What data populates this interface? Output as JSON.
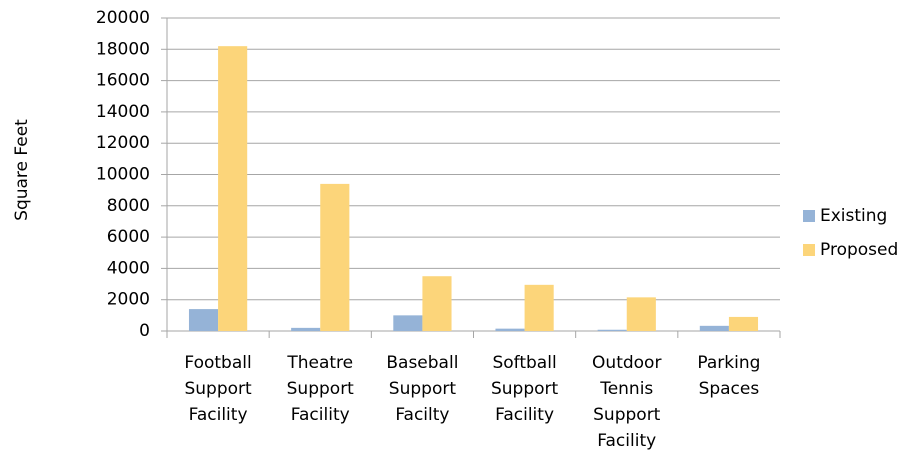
{
  "chart_data": {
    "type": "bar",
    "y_label": "Square Feet",
    "categories": [
      "Football Support Facility",
      "Theatre Support Facility",
      "Baseball Support Facilty",
      "Softball Support Facility",
      "Outdoor Tennis Support Facility",
      "Parking Spaces"
    ],
    "series": [
      {
        "name": "Existing",
        "color": "#95b3d7",
        "values": [
          1400,
          200,
          1000,
          150,
          80,
          330
        ]
      },
      {
        "name": "Proposed",
        "color": "#fcd57a",
        "values": [
          18200,
          9400,
          3500,
          2950,
          2150,
          900
        ]
      }
    ],
    "ylim": [
      0,
      20000
    ],
    "yticks": [
      0,
      2000,
      4000,
      6000,
      8000,
      10000,
      12000,
      14000,
      16000,
      18000,
      20000
    ],
    "grid": true,
    "legend": "right"
  }
}
